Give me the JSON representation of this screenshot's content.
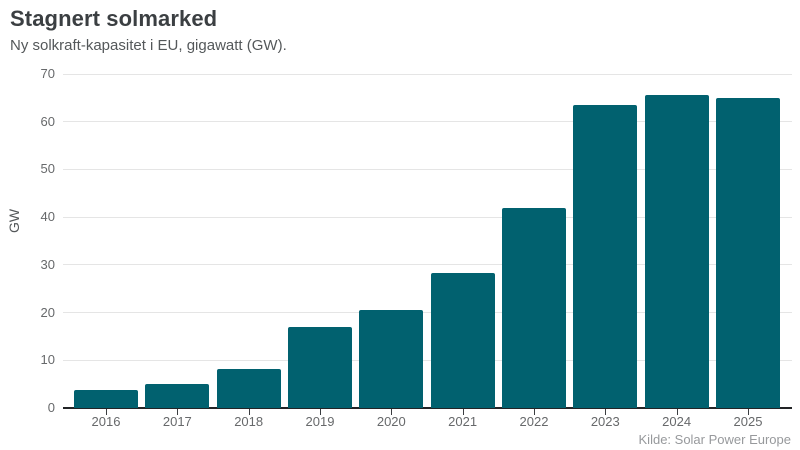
{
  "header": {
    "title": "Stagnert solmarked",
    "subtitle": "Ny solkraft-kapasitet i EU, gigawatt (GW)."
  },
  "chart_data": {
    "type": "bar",
    "title": "Stagnert solmarked",
    "subtitle": "Ny solkraft-kapasitet i EU, gigawatt (GW).",
    "categories": [
      "2016",
      "2017",
      "2018",
      "2019",
      "2020",
      "2021",
      "2022",
      "2023",
      "2024",
      "2025"
    ],
    "values": [
      3.7,
      5.0,
      8.1,
      16.9,
      20.5,
      28.2,
      42.0,
      63.5,
      65.5,
      65.0
    ],
    "xlabel": "",
    "ylabel": "GW",
    "ylim": [
      0,
      70
    ],
    "yticks": [
      0,
      10,
      20,
      30,
      40,
      50,
      60,
      70
    ],
    "grid": true,
    "legend": false,
    "bar_color": "#01616F"
  },
  "footer": {
    "source": "Kilde: Solar Power Europe"
  },
  "colors": {
    "bar": "#01616F",
    "grid": "#e5e5e5",
    "axis": "#222426",
    "title_text": "#3b3f42",
    "subtitle_text": "#54585a",
    "tick_text": "#67696b",
    "source_text": "#97999c",
    "background": "#ffffff"
  }
}
